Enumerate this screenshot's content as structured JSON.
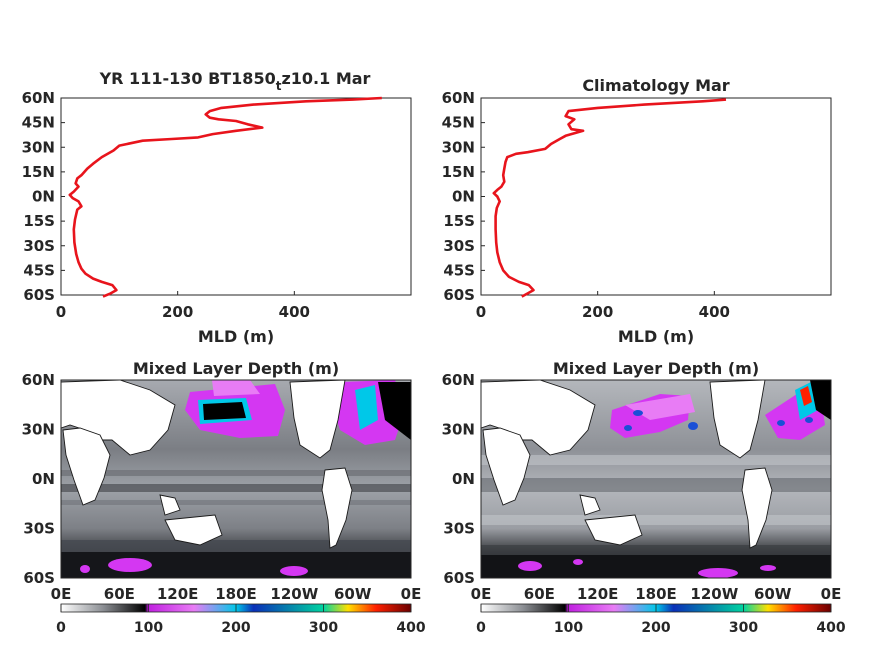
{
  "colors": {
    "profile": "#e8141c",
    "land": "#ffffff",
    "deep_patch": "#d437f2",
    "deeper_patch": "#1a4fd6",
    "black_patch": "#000000",
    "colorbar_stops": [
      "#ffffff",
      "#8c8f94",
      "#000000",
      "#c020e0",
      "#e87cf5",
      "#00c8e8",
      "#0a2fb8",
      "#00d4a0",
      "#ffe000",
      "#ff2000",
      "#6a0000"
    ]
  },
  "chart_data": [
    {
      "type": "line",
      "title_main": "YR 111-130 BT1850",
      "title_sub": "t",
      "title_end": "z10.1 Mar",
      "xlabel": "MLD (m)",
      "ylabel": "",
      "xlim": [
        0,
        600
      ],
      "ylim": [
        -60,
        60
      ],
      "xticks": [
        "0",
        "200",
        "400"
      ],
      "yticks": [
        "60N",
        "45N",
        "30N",
        "15N",
        "0N",
        "15S",
        "30S",
        "45S",
        "60S"
      ],
      "series": [
        {
          "points": [
            [
              72,
              -61
            ],
            [
              85,
              -59
            ],
            [
              95,
              -57
            ],
            [
              88,
              -54
            ],
            [
              70,
              -52
            ],
            [
              55,
              -50
            ],
            [
              42,
              -47
            ],
            [
              35,
              -44
            ],
            [
              30,
              -40
            ],
            [
              26,
              -35
            ],
            [
              23,
              -28
            ],
            [
              22,
              -20
            ],
            [
              24,
              -14
            ],
            [
              28,
              -8
            ],
            [
              35,
              -6
            ],
            [
              30,
              -3
            ],
            [
              20,
              -1
            ],
            [
              15,
              1
            ],
            [
              22,
              3
            ],
            [
              30,
              6
            ],
            [
              25,
              8
            ],
            [
              28,
              11
            ],
            [
              35,
              13
            ],
            [
              45,
              17
            ],
            [
              55,
              20
            ],
            [
              70,
              24
            ],
            [
              90,
              28
            ],
            [
              100,
              31
            ],
            [
              140,
              34
            ],
            [
              190,
              35
            ],
            [
              235,
              36
            ],
            [
              260,
              38
            ],
            [
              300,
              40
            ],
            [
              345,
              42
            ],
            [
              320,
              44
            ],
            [
              300,
              46
            ],
            [
              270,
              47
            ],
            [
              255,
              48
            ],
            [
              248,
              50
            ],
            [
              255,
              52
            ],
            [
              275,
              54
            ],
            [
              330,
              56
            ],
            [
              420,
              58
            ],
            [
              500,
              59
            ],
            [
              550,
              60
            ]
          ]
        }
      ]
    },
    {
      "type": "line",
      "title": "Climatology Mar",
      "xlabel": "MLD (m)",
      "ylabel": "",
      "xlim": [
        0,
        600
      ],
      "ylim": [
        -60,
        60
      ],
      "xticks": [
        "0",
        "200",
        "400"
      ],
      "yticks": [
        "60N",
        "45N",
        "30N",
        "15N",
        "0N",
        "15S",
        "30S",
        "45S",
        "60S"
      ],
      "series": [
        {
          "points": [
            [
              70,
              -61
            ],
            [
              80,
              -59
            ],
            [
              90,
              -57
            ],
            [
              82,
              -54
            ],
            [
              65,
              -52
            ],
            [
              48,
              -49
            ],
            [
              38,
              -45
            ],
            [
              32,
              -40
            ],
            [
              28,
              -34
            ],
            [
              26,
              -28
            ],
            [
              25,
              -20
            ],
            [
              25,
              -12
            ],
            [
              27,
              -7
            ],
            [
              32,
              -3
            ],
            [
              28,
              0
            ],
            [
              22,
              2
            ],
            [
              28,
              4
            ],
            [
              35,
              6
            ],
            [
              40,
              9
            ],
            [
              38,
              13
            ],
            [
              40,
              17
            ],
            [
              42,
              21
            ],
            [
              45,
              24
            ],
            [
              60,
              26
            ],
            [
              80,
              27
            ],
            [
              110,
              29
            ],
            [
              120,
              32
            ],
            [
              135,
              35
            ],
            [
              145,
              37
            ],
            [
              175,
              40
            ],
            [
              155,
              41
            ],
            [
              150,
              44
            ],
            [
              160,
              47
            ],
            [
              145,
              49
            ],
            [
              150,
              52
            ],
            [
              200,
              54
            ],
            [
              280,
              56
            ],
            [
              380,
              58
            ],
            [
              420,
              59
            ]
          ]
        }
      ]
    },
    {
      "type": "heatmap",
      "title": "Mixed Layer Depth (m)",
      "xticks": [
        "0E",
        "60E",
        "120E",
        "180E",
        "120W",
        "60W",
        "0E"
      ],
      "yticks": [
        "60N",
        "30N",
        "0N",
        "30S",
        "60S"
      ],
      "colorbar": {
        "range": [
          0,
          400
        ],
        "ticks": [
          "0",
          "100",
          "200",
          "300",
          "400"
        ]
      }
    },
    {
      "type": "heatmap",
      "title": "Mixed Layer Depth (m)",
      "xticks": [
        "0E",
        "60E",
        "120E",
        "180E",
        "120W",
        "60W",
        "0E"
      ],
      "yticks": [
        "60N",
        "30N",
        "0N",
        "30S",
        "60S"
      ],
      "colorbar": {
        "range": [
          0,
          400
        ],
        "ticks": [
          "0",
          "100",
          "200",
          "300",
          "400"
        ]
      }
    }
  ]
}
